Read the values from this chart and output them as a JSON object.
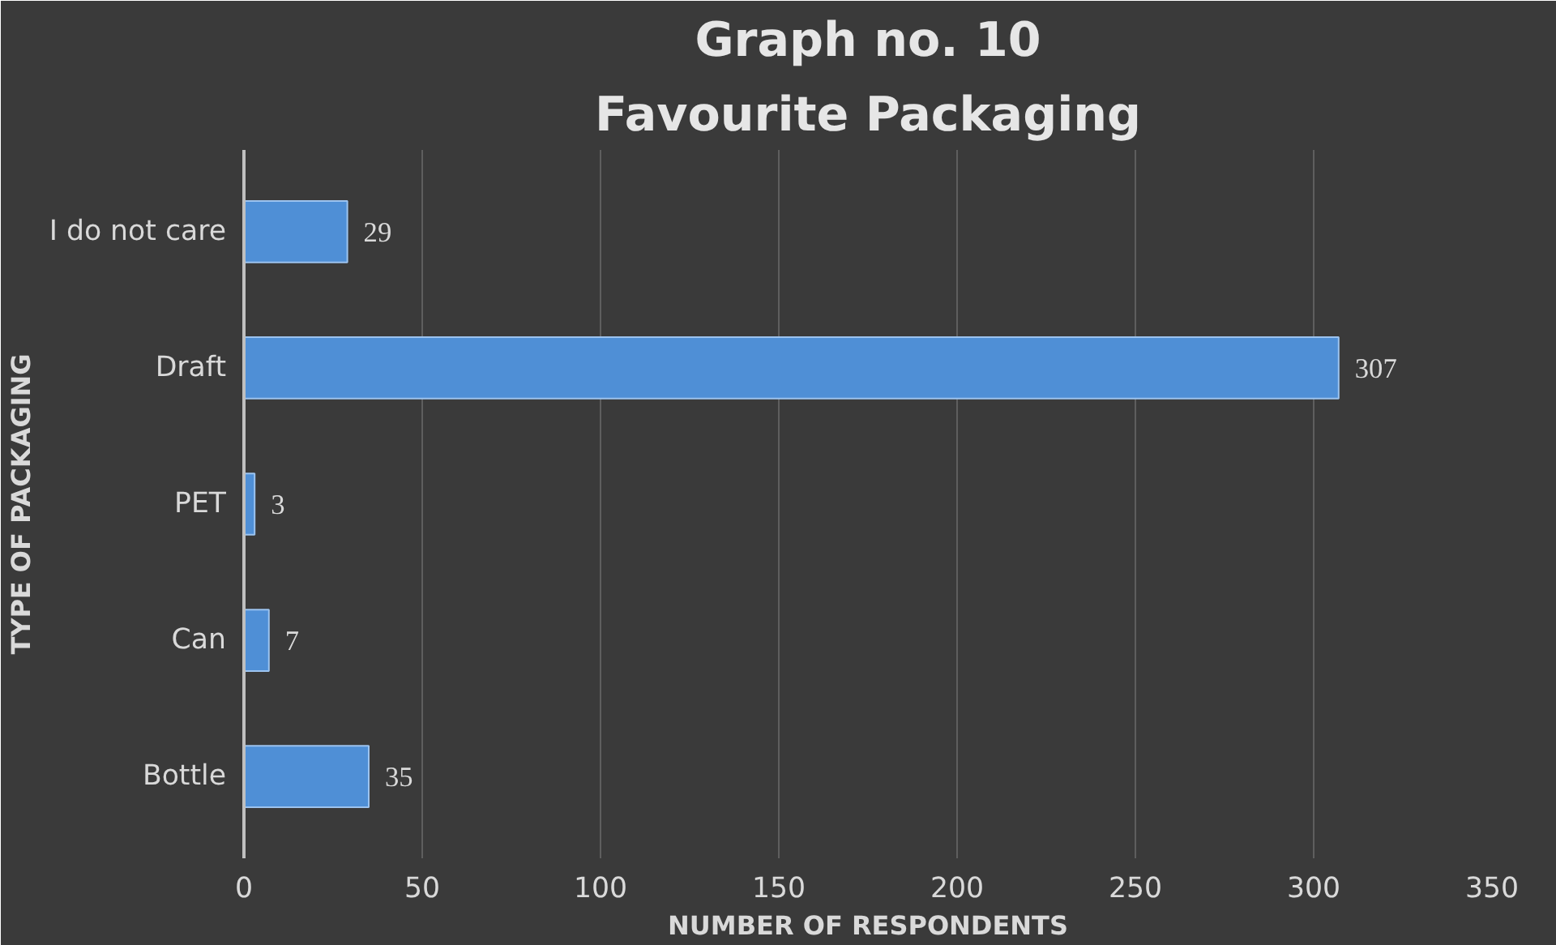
{
  "chart_data": {
    "type": "bar",
    "orientation": "horizontal",
    "title": "Graph no. 10",
    "subtitle": "Favourite Packaging",
    "xlabel": "NUMBER OF RESPONDENTS",
    "ylabel": "TYPE OF PACKAGING",
    "categories": [
      "I do not care",
      "Draft",
      "PET",
      "Can",
      "Bottle"
    ],
    "values": [
      29,
      307,
      3,
      7,
      35
    ],
    "color": "#4f8fd6",
    "xlim": [
      0,
      350
    ],
    "xticks": [
      0,
      50,
      100,
      150,
      200,
      250,
      300,
      350
    ],
    "grid": "x",
    "data_labels": true
  }
}
